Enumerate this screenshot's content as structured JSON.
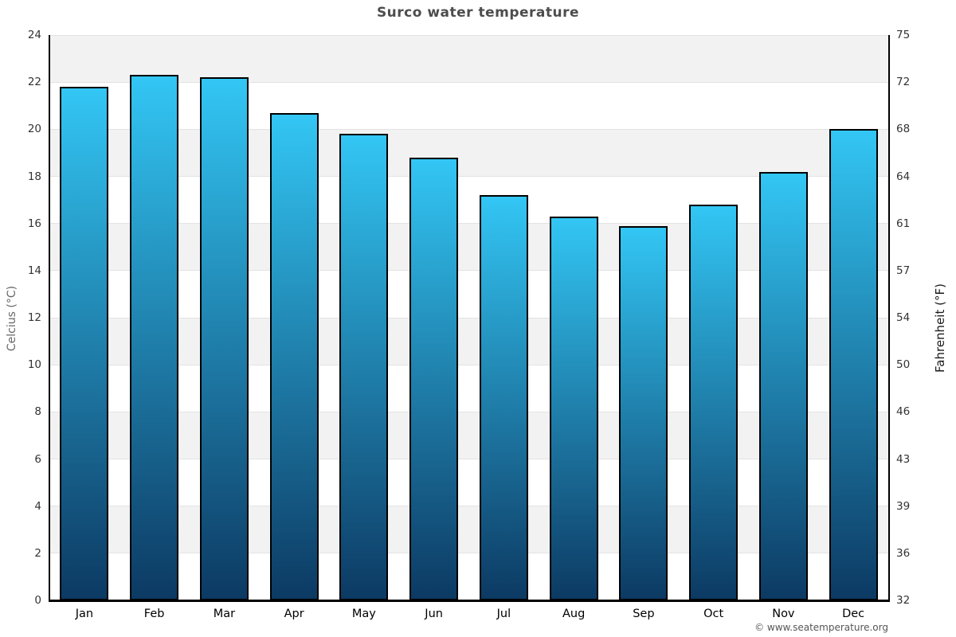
{
  "title": "Surco water temperature",
  "footer": "© www.seatemperature.org",
  "chart_data": {
    "type": "bar",
    "title": "Surco water temperature",
    "categories": [
      "Jan",
      "Feb",
      "Mar",
      "Apr",
      "May",
      "Jun",
      "Jul",
      "Aug",
      "Sep",
      "Oct",
      "Nov",
      "Dec"
    ],
    "values": [
      21.8,
      22.3,
      22.2,
      20.7,
      19.8,
      18.8,
      17.2,
      16.3,
      15.9,
      16.8,
      18.2,
      20.0
    ],
    "unit": "°C",
    "xlabel": "",
    "ylabel_left": "Celcius (°C)",
    "ylabel_right": "Fahrenheit (°F)",
    "ylim": [
      0,
      24
    ],
    "y_ticks_celsius": [
      0,
      2,
      4,
      6,
      8,
      10,
      12,
      14,
      16,
      18,
      20,
      22,
      24
    ],
    "y_tick_labels_fahrenheit": [
      "32",
      "36",
      "39",
      "43",
      "46",
      "50",
      "54",
      "57",
      "61",
      "64",
      "68",
      "72",
      "75"
    ],
    "grid": true,
    "legend_position": "none",
    "colors": {
      "bar_gradient_top": "#33c6f4",
      "bar_gradient_bottom": "#0c3a63",
      "bar_border": "#000000",
      "stripe_band": "#f2f2f2",
      "stripe_band_alt": "#ffffff",
      "gridline": "#e3e3e3",
      "title_text": "#4d4d4d",
      "tick_text": "#333333",
      "footer_text": "#565656"
    }
  }
}
